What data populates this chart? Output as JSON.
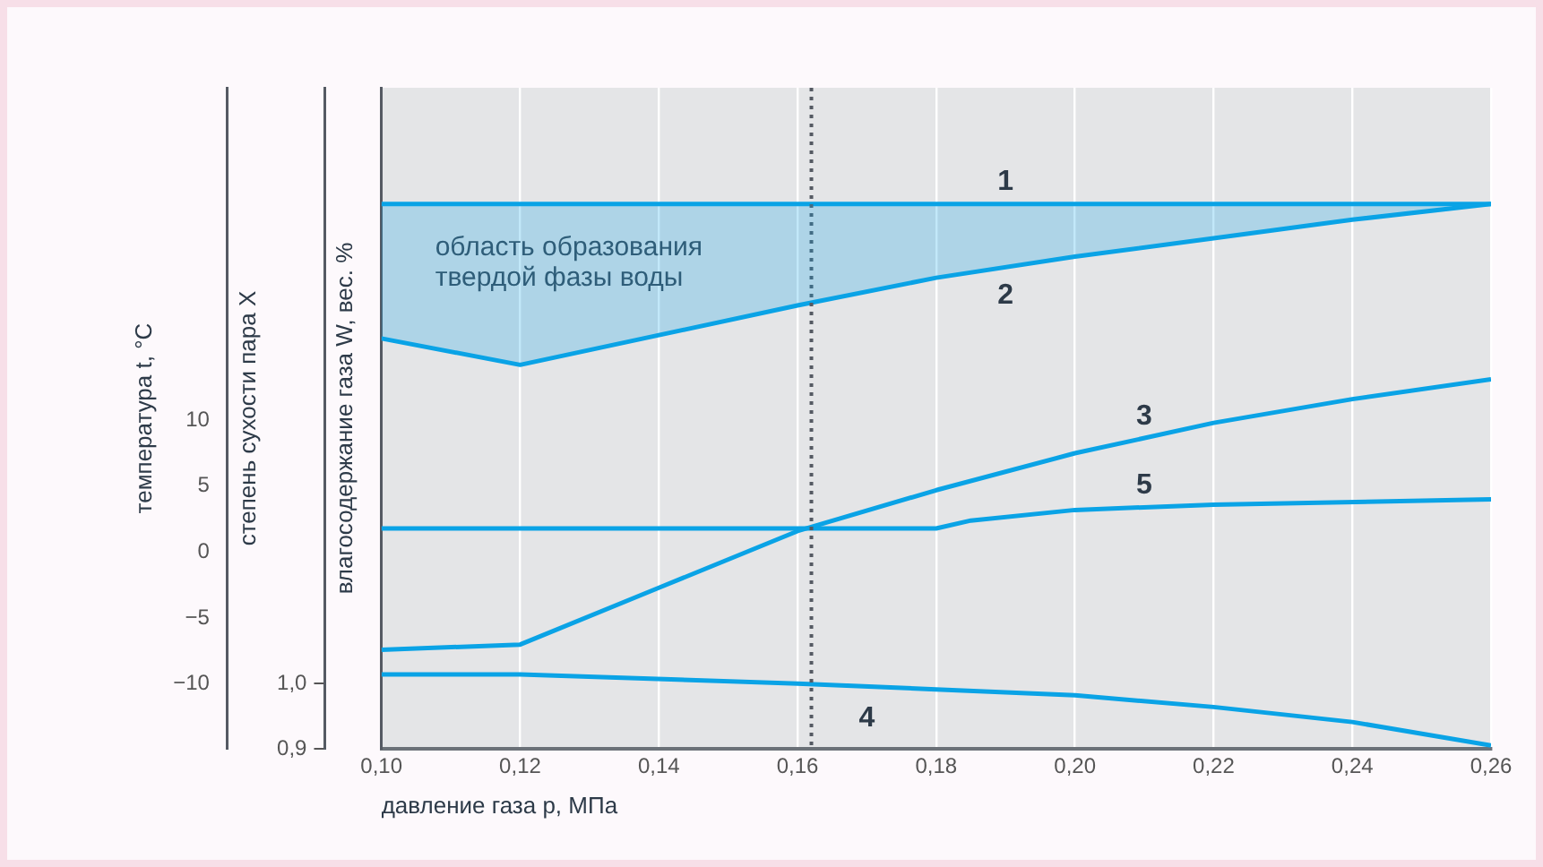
{
  "chart_data": {
    "type": "line",
    "xlabel": "давление газа p, МПа",
    "ylabel": "температура t, °C",
    "y2label": "степень сухости пара X",
    "y3label": "влагосодержание газа W, вес. %",
    "annotations": [
      "область образования\nтвердой фазы воды"
    ],
    "xlim": [
      0.1,
      0.26
    ],
    "xticks": [
      {
        "value": 0.1,
        "label": "0,10"
      },
      {
        "value": 0.12,
        "label": "0,12"
      },
      {
        "value": 0.14,
        "label": "0,14"
      },
      {
        "value": 0.16,
        "label": "0,16"
      },
      {
        "value": 0.18,
        "label": "0,18"
      },
      {
        "value": 0.2,
        "label": "0,20"
      },
      {
        "value": 0.22,
        "label": "0,22"
      },
      {
        "value": 0.24,
        "label": "0,24"
      },
      {
        "value": 0.26,
        "label": "0,26"
      }
    ],
    "ylim": [
      -14.9,
      35.2
    ],
    "yticks": [
      {
        "value": -10,
        "label": "−10"
      },
      {
        "value": -5,
        "label": "−5"
      },
      0,
      5,
      10
    ],
    "y2lim": [
      0.9,
      1.913
    ],
    "y2ticks": [
      {
        "value": 0.9,
        "label": "0,9"
      },
      {
        "value": 1.0,
        "label": "1,0"
      }
    ],
    "grid": "x",
    "legend": false,
    "marker": "none",
    "line_style": "solid",
    "ref_lines": [
      {
        "axis": "x",
        "value": 0.162,
        "color": "#555a63",
        "line_style": "dotted"
      }
    ],
    "series": [
      {
        "name": "1",
        "color": "#0aa3e6",
        "x": [
          0.1,
          0.26
        ],
        "values": [
          26.4,
          26.4
        ]
      },
      {
        "name": "2",
        "color": "#0aa3e6",
        "x": [
          0.1,
          0.12,
          0.16,
          0.18,
          0.2,
          0.22,
          0.24,
          0.26
        ],
        "values": [
          16.2,
          14.2,
          18.7,
          20.8,
          22.4,
          23.8,
          25.2,
          26.4
        ]
      },
      {
        "name": "3",
        "color": "#0aa3e6",
        "x": [
          0.1,
          0.12,
          0.14,
          0.16,
          0.18,
          0.2,
          0.22,
          0.24,
          0.26
        ],
        "values": [
          -7.4,
          -7.0,
          -2.7,
          1.6,
          4.7,
          7.5,
          9.8,
          11.6,
          13.1
        ]
      },
      {
        "name": "4",
        "color": "#0aa3e6",
        "axis": "y2",
        "x": [
          0.1,
          0.12,
          0.16,
          0.18,
          0.2,
          0.22,
          0.24,
          0.26
        ],
        "values": [
          1.014,
          1.014,
          1.0,
          0.991,
          0.982,
          0.964,
          0.941,
          0.905
        ]
      },
      {
        "name": "5",
        "color": "#0aa3e6",
        "x": [
          0.1,
          0.18,
          0.185,
          0.2,
          0.22,
          0.26
        ],
        "values": [
          1.8,
          1.8,
          2.4,
          3.2,
          3.6,
          4.0
        ]
      }
    ]
  }
}
